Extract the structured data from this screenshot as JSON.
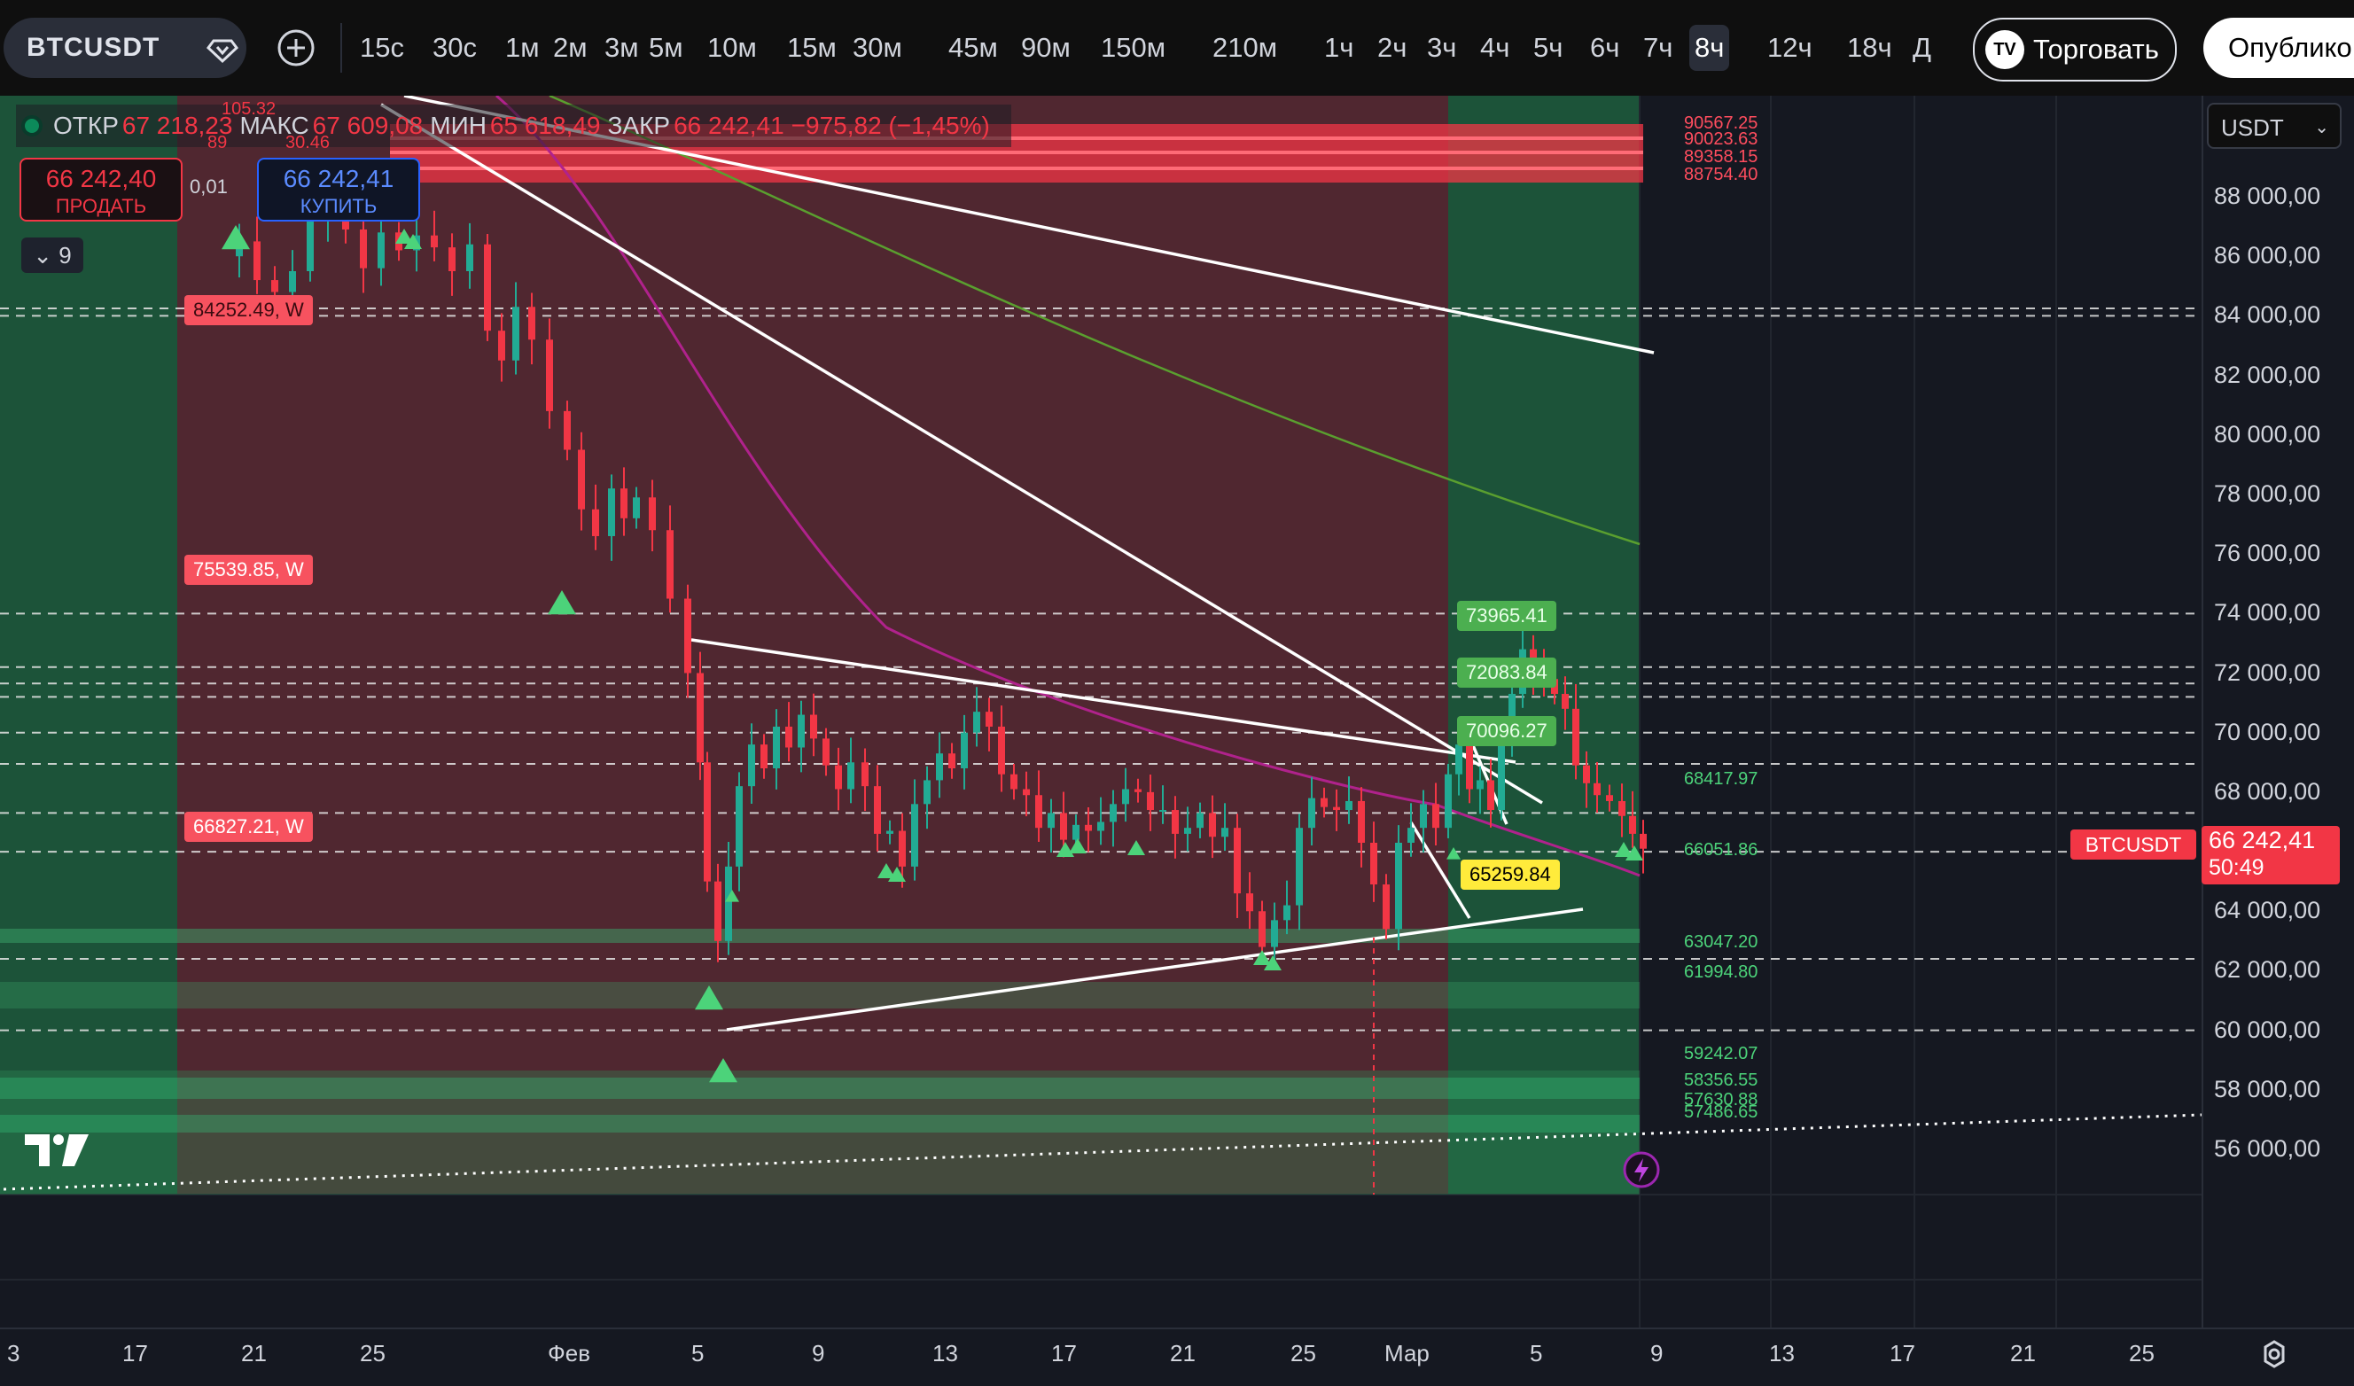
{
  "toolbar": {
    "symbol": "BTCUSDT",
    "timeframes": [
      "15с",
      "30с",
      "1м",
      "2м",
      "3м",
      "5м",
      "10м",
      "15м",
      "30м",
      "45м",
      "90м",
      "150м",
      "210м",
      "1ч",
      "2ч",
      "3ч",
      "4ч",
      "5ч",
      "6ч",
      "7ч",
      "8ч",
      "12ч",
      "18ч",
      "Д"
    ],
    "active_timeframe": "8ч",
    "trade_label": "Торговать",
    "trade_logo": "TV",
    "publish_label": "Опублико"
  },
  "ohlc": {
    "open_label": "ОТКР",
    "open": "67 218,23",
    "high_label": "МАКС",
    "high": "67 609,08",
    "low_label": "МИН",
    "low": "65 618,49",
    "close_label": "ЗАКР",
    "close": "66 242,41",
    "change": "−975,82 (−1,45%)"
  },
  "order": {
    "sell_price": "66 242,40",
    "sell_label": "ПРОДАТЬ",
    "spread": "0,01",
    "buy_price": "66 242,41",
    "buy_label": "КУПИТЬ"
  },
  "indicators_count": "9",
  "collapse_chevron": "⌄",
  "currency": "USDT",
  "currency_chevron": "⌄",
  "price_axis": [
    "88 000,00",
    "86 000,00",
    "84 000,00",
    "82 000,00",
    "80 000,00",
    "78 000,00",
    "76 000,00",
    "74 000,00",
    "72 000,00",
    "70 000,00",
    "68 000,00",
    "64 000,00",
    "62 000,00",
    "60 000,00",
    "58 000,00",
    "56 000,00"
  ],
  "time_axis": [
    "3",
    "17",
    "21",
    "25",
    "Фев",
    "5",
    "9",
    "13",
    "17",
    "21",
    "25",
    "Мар",
    "5",
    "9",
    "13",
    "17",
    "21",
    "25"
  ],
  "last_price": {
    "symbol": "BTCUSDT",
    "price": "66 242,41",
    "countdown": "50:49"
  },
  "level_tags_left": [
    "84252.49, W",
    "75539.85, W",
    "66827.21, W"
  ],
  "level_tags_green": [
    "73965.41",
    "72083.84",
    "70096.27"
  ],
  "level_tag_yellow": "65259.84",
  "level_text_red": [
    "90567.25",
    "90023.63",
    "89358.15",
    "88754.40"
  ],
  "level_text_green": [
    "68417.97",
    "66051.86",
    "63047.20",
    "61994.80",
    "59242.07",
    "58356.55",
    "57630.88",
    "57486.65"
  ],
  "partial_top_labels": [
    "105.32",
    "89",
    "30.46"
  ],
  "colors": {
    "up": "#22ab94",
    "down": "#f23645",
    "bg": "#151821",
    "green_zone": "#1d5a3c",
    "red_zone": "#5a2a32"
  }
}
